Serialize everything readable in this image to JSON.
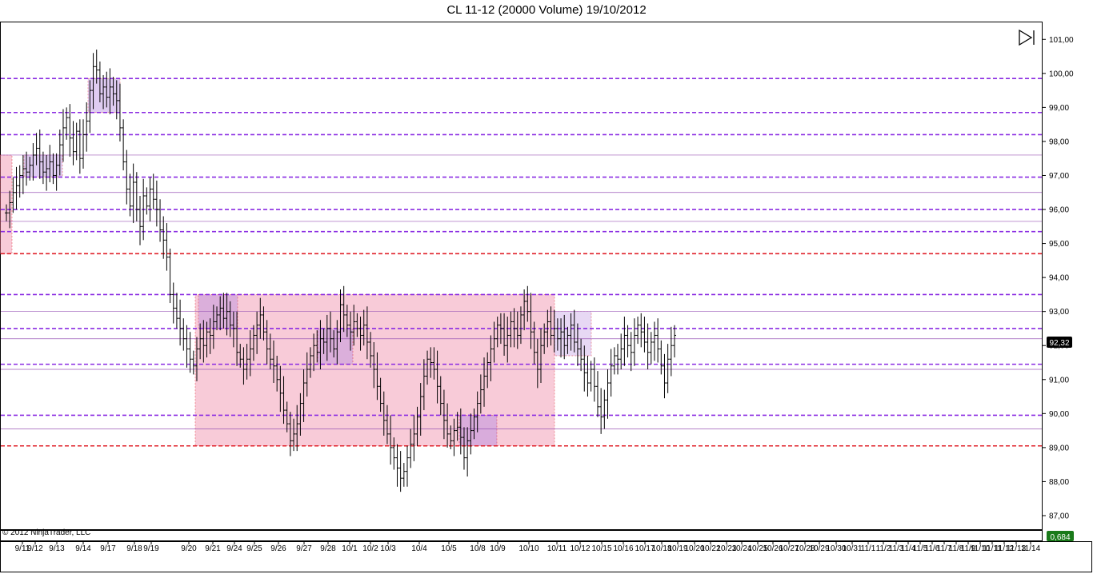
{
  "title": "CL 11-12 (20000 Volume)  19/10/2012",
  "copyright": "© 2012 NinjaTrader, LLC",
  "price_badge": "92,32",
  "indicator_badge": "0,684",
  "colors": {
    "candle": "#000000",
    "range_fill": "#f08ca8",
    "cluster_fill": "#b98ee0",
    "dashed_purple": "#8a2be2",
    "dashed_red": "#e0202a",
    "thin_purple": "#9b59b6",
    "badge_price_bg": "#000000",
    "badge_indicator_bg": "#1a7a1a"
  },
  "chart_data": {
    "type": "ohlc",
    "ylim": [
      86.6,
      101.5
    ],
    "y_ticks": [
      "87,00",
      "88,00",
      "89,00",
      "90,00",
      "91,00",
      "92,00",
      "93,00",
      "94,00",
      "95,00",
      "96,00",
      "97,00",
      "98,00",
      "99,00",
      "100,00",
      "101,00"
    ],
    "y_tick_values": [
      87,
      88,
      89,
      90,
      91,
      92,
      93,
      94,
      95,
      96,
      97,
      98,
      99,
      100,
      101
    ],
    "x_ticks": [
      "9/11",
      "9/12",
      "9/13",
      "9/14",
      "9/17",
      "9/18",
      "9/19",
      "9/20",
      "9/21",
      "9/24",
      "9/25",
      "9/26",
      "9/27",
      "9/28",
      "10/1",
      "10/2",
      "10/3",
      "10/4",
      "10/5",
      "10/8",
      "10/9",
      "10/10",
      "10/11",
      "10/12",
      "10/15",
      "10/16",
      "10/17",
      "10/18",
      "10/19",
      "10/20",
      "10/22",
      "10/23",
      "10/24",
      "10/25",
      "10/26",
      "10/27",
      "10/28",
      "10/29",
      "10/30",
      "10/31",
      "11/1",
      "11/2",
      "11/3",
      "11/4",
      "11/5",
      "11/6",
      "11/7",
      "11/8",
      "11/9",
      "11/10",
      "11/11",
      "11/12",
      "11/13",
      "11/14"
    ],
    "price_levels_dashed_purple": [
      99.85,
      98.85,
      98.2,
      96.95,
      96.0,
      95.35,
      93.5,
      92.5,
      91.45,
      89.95
    ],
    "price_levels_dashed_red": [
      94.7,
      89.05
    ],
    "price_levels_thin_purple": [
      97.6,
      96.5,
      95.65,
      93.0,
      92.2,
      91.3,
      89.55
    ],
    "closes": [
      95.9,
      96.2,
      96.5,
      96.7,
      97.0,
      97.2,
      97.1,
      97.3,
      97.6,
      97.8,
      97.4,
      97.1,
      97.2,
      97.4,
      97.0,
      97.3,
      97.9,
      98.4,
      98.7,
      98.1,
      97.7,
      98.3,
      97.5,
      98.2,
      98.6,
      99.5,
      100.2,
      100.1,
      99.4,
      99.6,
      99.3,
      99.6,
      99.4,
      99.2,
      98.4,
      97.4,
      96.6,
      96.1,
      96.8,
      96.0,
      95.5,
      96.4,
      96.1,
      96.6,
      96.3,
      96.0,
      95.4,
      95.1,
      94.6,
      93.5,
      93.1,
      92.8,
      92.5,
      92.2,
      91.9,
      91.6,
      91.4,
      91.9,
      92.2,
      92.0,
      92.4,
      92.3,
      92.7,
      92.9,
      93.1,
      92.8,
      93.0,
      92.6,
      92.5,
      91.8,
      91.6,
      91.3,
      91.6,
      91.9,
      92.3,
      92.6,
      92.9,
      92.4,
      91.9,
      91.6,
      91.4,
      91.0,
      90.6,
      90.1,
      89.7,
      89.2,
      89.4,
      89.7,
      90.3,
      90.9,
      91.3,
      91.7,
      92.0,
      91.8,
      92.2,
      92.1,
      92.5,
      92.2,
      91.9,
      92.4,
      93.2,
      92.9,
      92.6,
      92.4,
      92.7,
      92.5,
      92.3,
      92.6,
      92.1,
      91.7,
      91.3,
      90.8,
      90.3,
      89.8,
      89.4,
      89.0,
      88.7,
      88.4,
      88.1,
      88.3,
      88.7,
      89.1,
      89.4,
      89.9,
      90.5,
      91.1,
      91.6,
      91.5,
      91.3,
      90.8,
      90.3,
      89.8,
      89.4,
      89.2,
      89.5,
      89.6,
      89.3,
      88.7,
      89.2,
      89.5,
      89.9,
      90.3,
      90.7,
      91.1,
      91.5,
      91.9,
      92.2,
      92.6,
      92.5,
      92.0,
      92.3,
      92.7,
      92.5,
      92.3,
      92.9,
      93.3,
      93.0,
      92.4,
      91.8,
      91.3,
      92.0,
      92.4,
      92.7,
      92.3,
      92.5,
      92.2,
      92.4,
      92.0,
      92.3,
      92.6,
      92.1,
      91.9,
      91.6,
      91.2,
      90.9,
      91.3,
      90.8,
      90.2,
      89.9,
      90.4,
      90.9,
      91.4,
      91.7,
      91.6,
      91.9,
      92.3,
      92.0,
      91.8,
      92.3,
      92.6,
      92.4,
      92.1,
      91.8,
      92.1,
      92.3,
      91.9,
      91.4,
      90.9,
      91.6,
      92.0,
      92.3
    ]
  }
}
